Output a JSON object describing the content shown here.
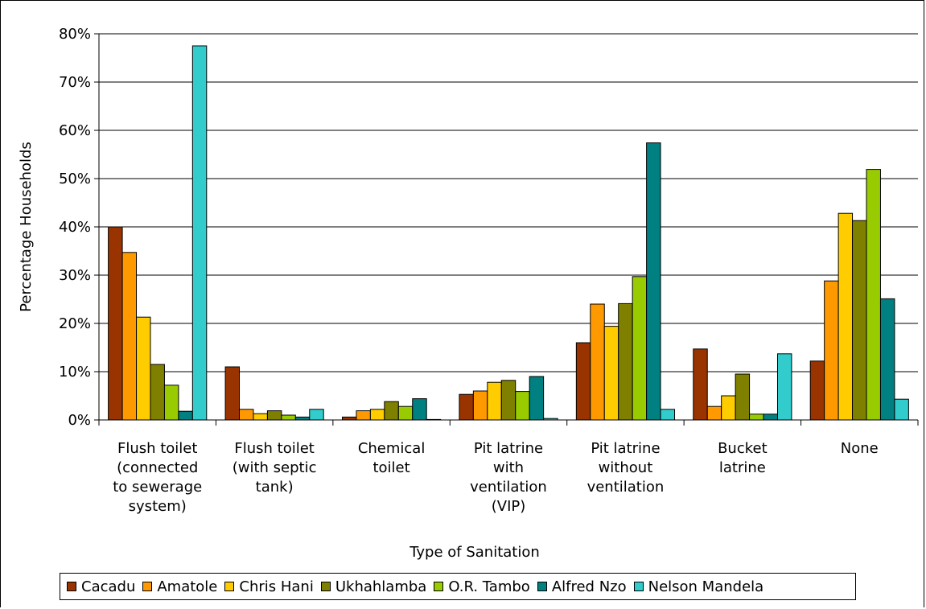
{
  "chart_data": {
    "type": "bar",
    "xlabel": "Type of Sanitation",
    "ylabel": "Percentage Households",
    "ylim": [
      0,
      80
    ],
    "yticks": [
      "0%",
      "10%",
      "20%",
      "30%",
      "40%",
      "50%",
      "60%",
      "70%",
      "80%"
    ],
    "grid": true,
    "legend_position": "bottom",
    "categories": [
      [
        "Flush toilet",
        "(connected",
        "to sewerage",
        "system)"
      ],
      [
        "Flush toilet",
        "(with septic",
        "tank)"
      ],
      [
        "Chemical",
        "toilet"
      ],
      [
        "Pit latrine",
        "with",
        "ventilation",
        "(VIP)"
      ],
      [
        "Pit latrine",
        "without",
        "ventilation"
      ],
      [
        "Bucket",
        "latrine"
      ],
      [
        "None"
      ]
    ],
    "series": [
      {
        "name": "Cacadu",
        "color": "#993300",
        "values": [
          40.0,
          11.0,
          0.6,
          5.3,
          16.0,
          14.7,
          12.2
        ]
      },
      {
        "name": "Amatole",
        "color": "#FF9900",
        "values": [
          34.7,
          2.2,
          1.9,
          6.0,
          24.0,
          2.8,
          28.8
        ]
      },
      {
        "name": "Chris Hani",
        "color": "#FFCC00",
        "values": [
          21.3,
          1.3,
          2.2,
          7.8,
          19.4,
          5.0,
          42.8
        ]
      },
      {
        "name": "Ukhahlamba",
        "color": "#808000",
        "values": [
          11.5,
          1.9,
          3.8,
          8.2,
          24.1,
          9.5,
          41.3
        ]
      },
      {
        "name": "O.R. Tambo",
        "color": "#99CC00",
        "values": [
          7.2,
          1.0,
          2.8,
          5.9,
          29.7,
          1.2,
          51.9
        ]
      },
      {
        "name": "Alfred Nzo",
        "color": "#008080",
        "values": [
          1.8,
          0.6,
          4.4,
          9.0,
          57.4,
          1.2,
          25.1
        ]
      },
      {
        "name": "Nelson Mandela",
        "color": "#33CCCC",
        "values": [
          77.5,
          2.2,
          0.1,
          0.3,
          2.2,
          13.7,
          4.3
        ]
      }
    ]
  }
}
